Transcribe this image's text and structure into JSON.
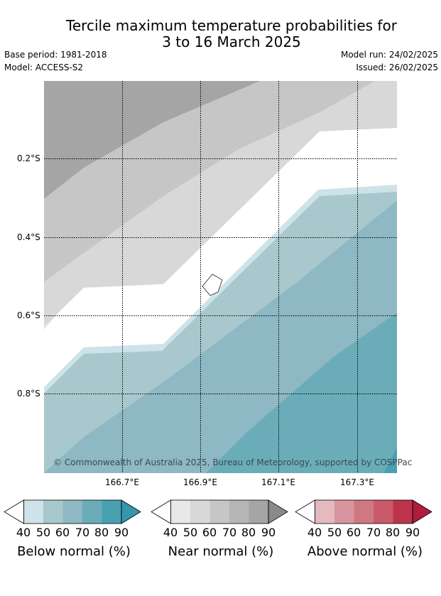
{
  "title_line1": "Tercile maximum temperature probabilities for",
  "title_line2": "3 to 16 March 2025",
  "base_period": "Base period: 1981-2018",
  "model": "Model: ACCESS-S2",
  "model_run": "Model run: 24/02/2025",
  "issued": "Issued: 26/02/2025",
  "copyright": "© Commonwealth of Australia 2025, Bureau of Meteorology, supported by COSPPac",
  "lat_labels": [
    "0.2°S",
    "0.4°S",
    "0.6°S",
    "0.8°S"
  ],
  "lon_labels": [
    "166.7°E",
    "166.9°E",
    "167.1°E",
    "167.3°E"
  ],
  "legends": [
    {
      "label": "Below normal (%)",
      "ticks": [
        "40",
        "50",
        "60",
        "70",
        "80",
        "90"
      ],
      "colors": [
        "#cde3e9",
        "#a7c8cd",
        "#8db8c4",
        "#6aadb8",
        "#48a0b2"
      ],
      "low_color": "#ffffff",
      "high_color": "#3595ad"
    },
    {
      "label": "Near normal (%)",
      "ticks": [
        "40",
        "50",
        "60",
        "70",
        "80",
        "90"
      ],
      "colors": [
        "#e8e8e8",
        "#d8d8d8",
        "#c6c6c6",
        "#b5b5b5",
        "#a5a5a5"
      ],
      "low_color": "#ffffff",
      "high_color": "#8a8a8a"
    },
    {
      "label": "Above normal (%)",
      "ticks": [
        "40",
        "50",
        "60",
        "70",
        "80",
        "90"
      ],
      "colors": [
        "#e4b9c0",
        "#d9959f",
        "#cf7882",
        "#c95a6a",
        "#bc344a"
      ],
      "low_color": "#ffffff",
      "high_color": "#b01c3c"
    }
  ],
  "map_colors": {
    "near_80": "#a5a5a5",
    "near_70": "#c6c6c6",
    "near_60": "#d8d8d8",
    "near_50": "#e6e6e6",
    "below_40": "#cde3e9",
    "below_50": "#a9c8cd",
    "below_60": "#8db8c4",
    "below_70": "#6aadb8",
    "below_80": "#48a0b2"
  }
}
